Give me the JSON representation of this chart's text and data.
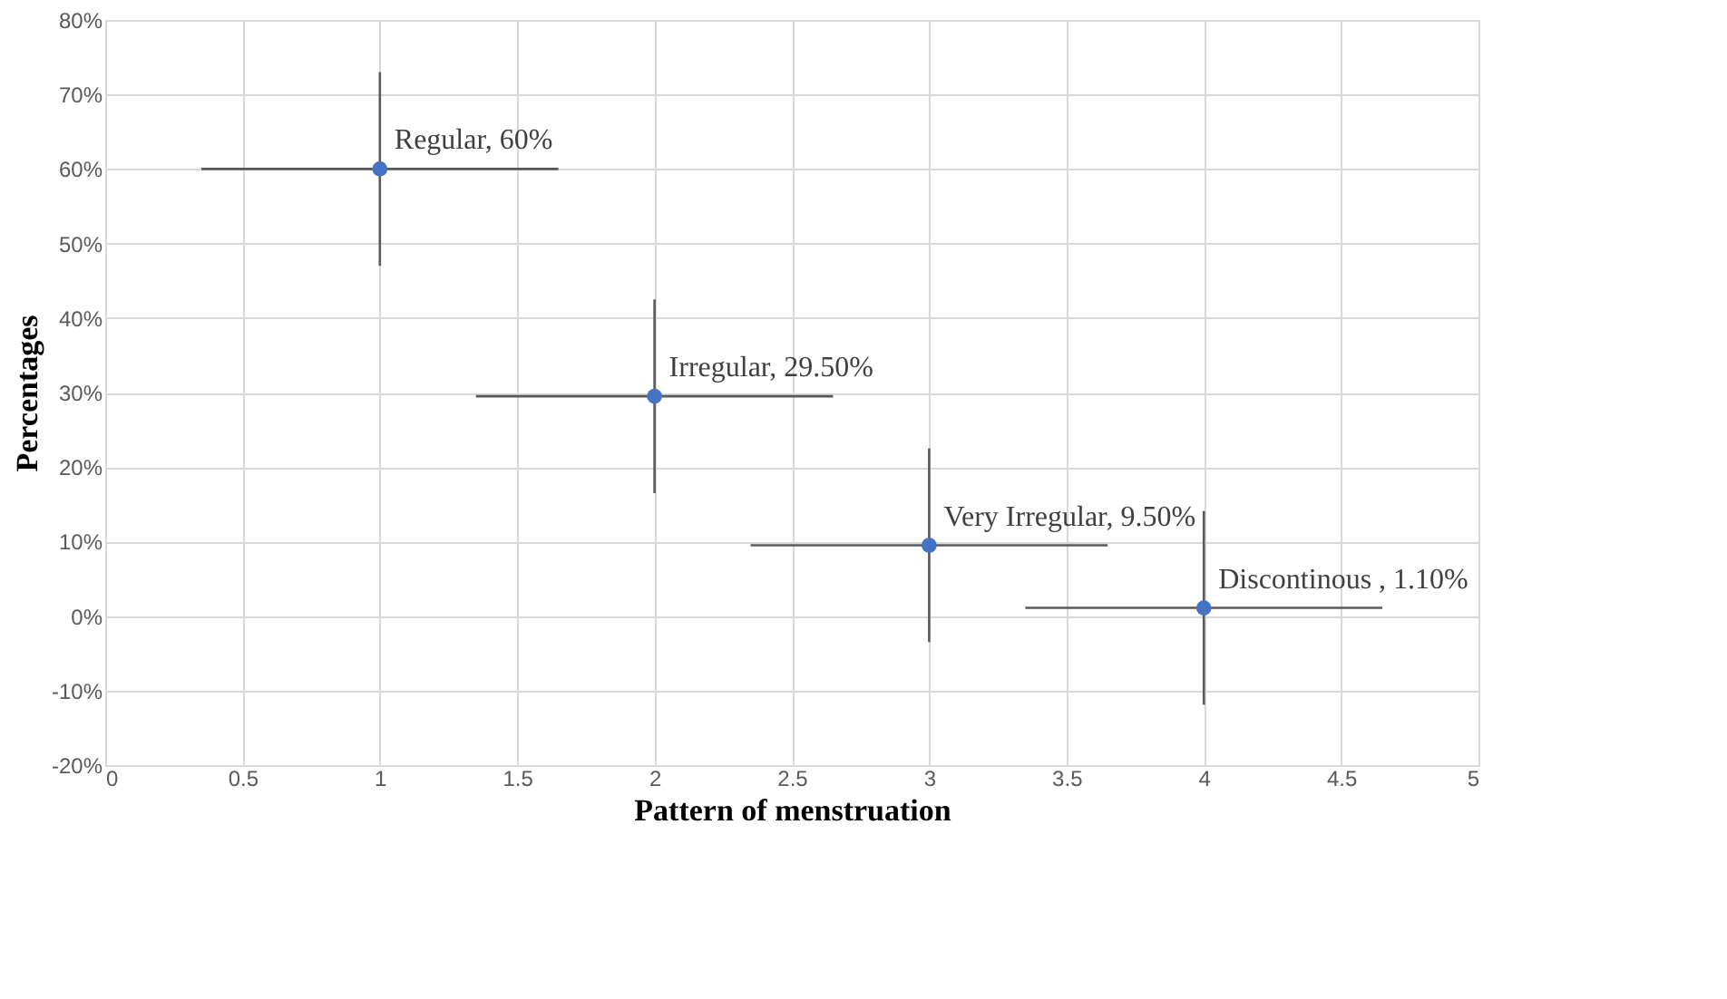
{
  "chart_data": {
    "type": "scatter",
    "xlabel": "Pattern  of menstruation",
    "ylabel": "Percentages",
    "x": [
      1,
      2,
      3,
      4
    ],
    "series": [
      {
        "color": "#4472c4",
        "values": [
          60,
          29.5,
          9.5,
          1.1
        ],
        "errors": [
          13,
          13,
          13,
          13
        ],
        "xerrors": [
          0.65,
          0.65,
          0.65,
          0.65
        ],
        "value_labels": [
          "Regular, 60%",
          "Irregular, 29.50%",
          "Very Irregular, 9.50%",
          "Discontinous , 1.10%"
        ]
      }
    ],
    "xlim": [
      0,
      5
    ],
    "xticks": [
      0,
      0.5,
      1,
      1.5,
      2,
      2.5,
      3,
      3.5,
      4,
      4.5,
      5
    ],
    "ylim": [
      -20,
      80
    ],
    "yticks": [
      {
        "value": -20,
        "label": "-20%"
      },
      {
        "value": -10,
        "label": "-10%"
      },
      {
        "value": 0,
        "label": "0%"
      },
      {
        "value": 10,
        "label": "10%"
      },
      {
        "value": 20,
        "label": "20%"
      },
      {
        "value": 30,
        "label": "30%"
      },
      {
        "value": 40,
        "label": "40%"
      },
      {
        "value": 50,
        "label": "50%"
      },
      {
        "value": 60,
        "label": "60%"
      },
      {
        "value": 70,
        "label": "70%"
      },
      {
        "value": 80,
        "label": "80%"
      }
    ],
    "grid": true,
    "marker": "circle"
  }
}
